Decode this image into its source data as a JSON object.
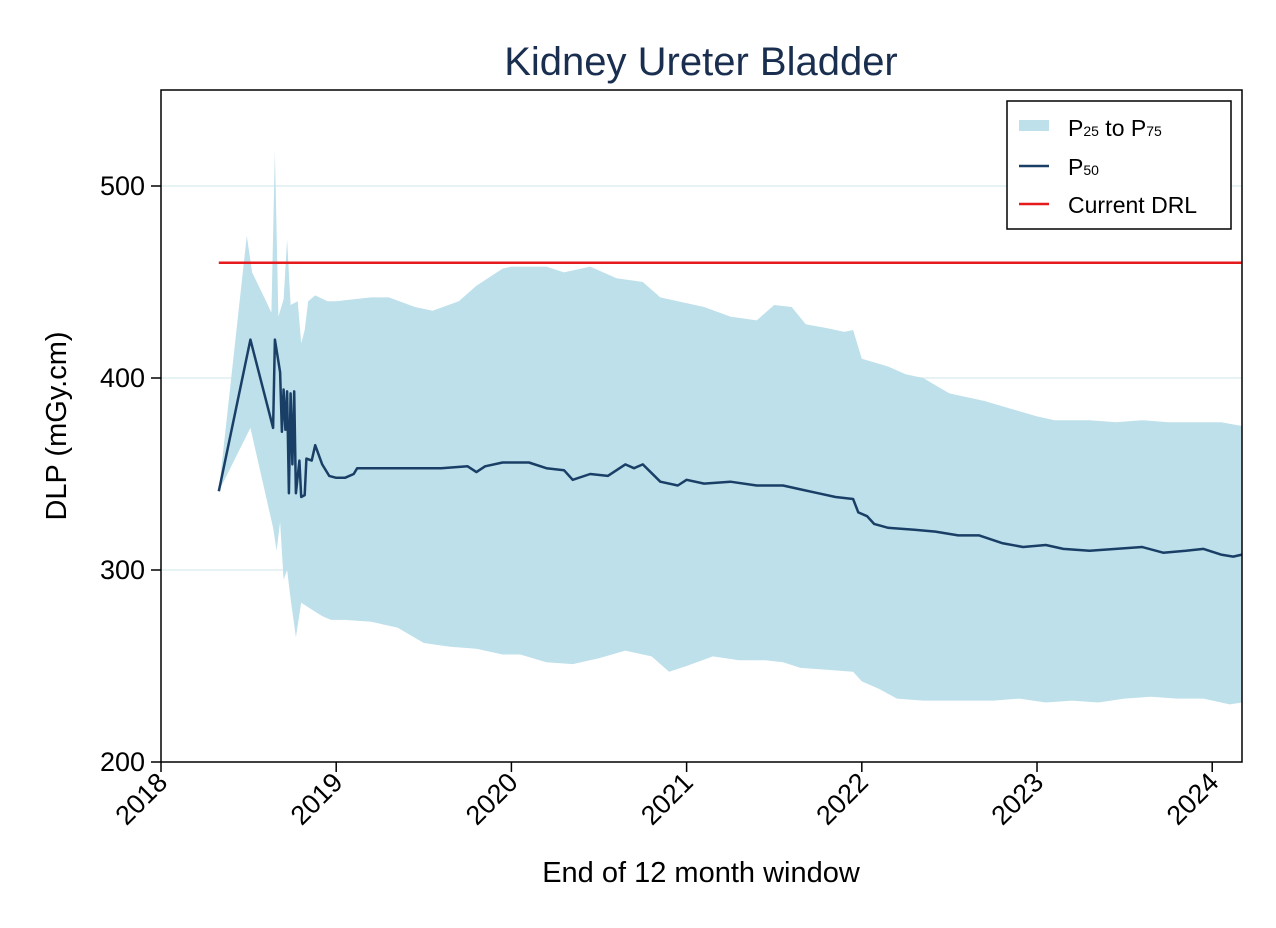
{
  "chart_data": {
    "type": "area",
    "title": "Kidney Ureter Bladder",
    "xlabel": "End of 12 month window",
    "ylabel": "DLP (mGy.cm)",
    "xlim": [
      2018.0,
      2024.17
    ],
    "ylim": [
      200,
      550
    ],
    "x_ticks": [
      2018,
      2019,
      2020,
      2021,
      2022,
      2023,
      2024
    ],
    "x_tick_labels": [
      "2018",
      "2019",
      "2020",
      "2021",
      "2022",
      "2023",
      "2024"
    ],
    "y_ticks": [
      200,
      300,
      400,
      500
    ],
    "y_tick_labels": [
      "200",
      "300",
      "400",
      "500"
    ],
    "grid": "horizontal",
    "legend": {
      "placement": "top-right",
      "entries": [
        {
          "key": "band",
          "label_parts": [
            "P",
            "25",
            " to P",
            "75"
          ]
        },
        {
          "key": "median",
          "label_parts": [
            "P",
            "50"
          ]
        },
        {
          "key": "drl",
          "label_parts": [
            "Current DRL"
          ]
        }
      ]
    },
    "colors": {
      "band": "#bde0ea",
      "median": "#1a3f66",
      "drl": "#e41a1c",
      "grid": "#e6f2f4",
      "title": "#1a2f4f"
    },
    "series": [
      {
        "name": "P50",
        "role": "median",
        "points": [
          [
            2018.33,
            341
          ],
          [
            2018.51,
            420
          ],
          [
            2018.64,
            374
          ],
          [
            2018.65,
            420
          ],
          [
            2018.68,
            403
          ],
          [
            2018.69,
            372
          ],
          [
            2018.7,
            394
          ],
          [
            2018.71,
            373
          ],
          [
            2018.72,
            393
          ],
          [
            2018.73,
            340
          ],
          [
            2018.74,
            392
          ],
          [
            2018.75,
            355
          ],
          [
            2018.76,
            393
          ],
          [
            2018.77,
            340
          ],
          [
            2018.79,
            357
          ],
          [
            2018.8,
            338
          ],
          [
            2018.82,
            339
          ],
          [
            2018.83,
            358
          ],
          [
            2018.86,
            357
          ],
          [
            2018.88,
            365
          ],
          [
            2018.92,
            355
          ],
          [
            2018.96,
            349
          ],
          [
            2019.0,
            348
          ],
          [
            2019.05,
            348
          ],
          [
            2019.1,
            350
          ],
          [
            2019.12,
            353
          ],
          [
            2019.25,
            353
          ],
          [
            2019.4,
            353
          ],
          [
            2019.6,
            353
          ],
          [
            2019.75,
            354
          ],
          [
            2019.8,
            351
          ],
          [
            2019.85,
            354
          ],
          [
            2019.95,
            356
          ],
          [
            2020.1,
            356
          ],
          [
            2020.2,
            353
          ],
          [
            2020.3,
            352
          ],
          [
            2020.35,
            347
          ],
          [
            2020.45,
            350
          ],
          [
            2020.55,
            349
          ],
          [
            2020.65,
            355
          ],
          [
            2020.7,
            353
          ],
          [
            2020.75,
            355
          ],
          [
            2020.85,
            346
          ],
          [
            2020.95,
            344
          ],
          [
            2021.0,
            347
          ],
          [
            2021.1,
            345
          ],
          [
            2021.25,
            346
          ],
          [
            2021.4,
            344
          ],
          [
            2021.55,
            344
          ],
          [
            2021.65,
            342
          ],
          [
            2021.75,
            340
          ],
          [
            2021.85,
            338
          ],
          [
            2021.95,
            337
          ],
          [
            2021.98,
            330
          ],
          [
            2022.03,
            328
          ],
          [
            2022.07,
            324
          ],
          [
            2022.15,
            322
          ],
          [
            2022.3,
            321
          ],
          [
            2022.42,
            320
          ],
          [
            2022.55,
            318
          ],
          [
            2022.67,
            318
          ],
          [
            2022.8,
            314
          ],
          [
            2022.92,
            312
          ],
          [
            2023.05,
            313
          ],
          [
            2023.15,
            311
          ],
          [
            2023.3,
            310
          ],
          [
            2023.45,
            311
          ],
          [
            2023.6,
            312
          ],
          [
            2023.72,
            309
          ],
          [
            2023.85,
            310
          ],
          [
            2023.95,
            311
          ],
          [
            2024.05,
            308
          ],
          [
            2024.12,
            307
          ],
          [
            2024.17,
            308
          ]
        ]
      },
      {
        "name": "P75",
        "role": "band-upper",
        "points": [
          [
            2018.33,
            341
          ],
          [
            2018.49,
            474
          ],
          [
            2018.52,
            455
          ],
          [
            2018.6,
            440
          ],
          [
            2018.63,
            434
          ],
          [
            2018.65,
            518
          ],
          [
            2018.67,
            432
          ],
          [
            2018.7,
            441
          ],
          [
            2018.72,
            472
          ],
          [
            2018.74,
            438
          ],
          [
            2018.78,
            440
          ],
          [
            2018.8,
            418
          ],
          [
            2018.82,
            425
          ],
          [
            2018.84,
            440
          ],
          [
            2018.88,
            443
          ],
          [
            2018.95,
            440
          ],
          [
            2019.0,
            440
          ],
          [
            2019.1,
            441
          ],
          [
            2019.2,
            442
          ],
          [
            2019.3,
            442
          ],
          [
            2019.45,
            437
          ],
          [
            2019.55,
            435
          ],
          [
            2019.7,
            440
          ],
          [
            2019.8,
            448
          ],
          [
            2019.95,
            457
          ],
          [
            2020.0,
            458
          ],
          [
            2020.2,
            458
          ],
          [
            2020.3,
            455
          ],
          [
            2020.45,
            458
          ],
          [
            2020.6,
            452
          ],
          [
            2020.75,
            450
          ],
          [
            2020.85,
            442
          ],
          [
            2020.95,
            440
          ],
          [
            2021.1,
            437
          ],
          [
            2021.25,
            432
          ],
          [
            2021.4,
            430
          ],
          [
            2021.5,
            438
          ],
          [
            2021.6,
            437
          ],
          [
            2021.68,
            428
          ],
          [
            2021.8,
            426
          ],
          [
            2021.9,
            424
          ],
          [
            2021.95,
            425
          ],
          [
            2022.0,
            410
          ],
          [
            2022.15,
            406
          ],
          [
            2022.25,
            402
          ],
          [
            2022.35,
            400
          ],
          [
            2022.5,
            392
          ],
          [
            2022.7,
            388
          ],
          [
            2022.85,
            384
          ],
          [
            2023.0,
            380
          ],
          [
            2023.1,
            378
          ],
          [
            2023.3,
            378
          ],
          [
            2023.45,
            377
          ],
          [
            2023.6,
            378
          ],
          [
            2023.75,
            377
          ],
          [
            2023.9,
            377
          ],
          [
            2024.05,
            377
          ],
          [
            2024.17,
            375
          ]
        ]
      },
      {
        "name": "P25",
        "role": "band-lower",
        "points": [
          [
            2018.33,
            341
          ],
          [
            2018.51,
            374
          ],
          [
            2018.64,
            322
          ],
          [
            2018.66,
            310
          ],
          [
            2018.68,
            325
          ],
          [
            2018.7,
            295
          ],
          [
            2018.72,
            300
          ],
          [
            2018.74,
            285
          ],
          [
            2018.77,
            265
          ],
          [
            2018.8,
            283
          ],
          [
            2018.85,
            280
          ],
          [
            2018.92,
            276
          ],
          [
            2018.97,
            274
          ],
          [
            2019.05,
            274
          ],
          [
            2019.2,
            273
          ],
          [
            2019.35,
            270
          ],
          [
            2019.5,
            262
          ],
          [
            2019.65,
            260
          ],
          [
            2019.8,
            259
          ],
          [
            2019.95,
            256
          ],
          [
            2020.05,
            256
          ],
          [
            2020.2,
            252
          ],
          [
            2020.35,
            251
          ],
          [
            2020.5,
            254
          ],
          [
            2020.65,
            258
          ],
          [
            2020.8,
            255
          ],
          [
            2020.9,
            247
          ],
          [
            2021.0,
            250
          ],
          [
            2021.15,
            255
          ],
          [
            2021.3,
            253
          ],
          [
            2021.45,
            253
          ],
          [
            2021.55,
            252
          ],
          [
            2021.65,
            249
          ],
          [
            2021.8,
            248
          ],
          [
            2021.95,
            247
          ],
          [
            2022.0,
            242
          ],
          [
            2022.1,
            238
          ],
          [
            2022.2,
            233
          ],
          [
            2022.35,
            232
          ],
          [
            2022.55,
            232
          ],
          [
            2022.75,
            232
          ],
          [
            2022.9,
            233
          ],
          [
            2023.05,
            231
          ],
          [
            2023.2,
            232
          ],
          [
            2023.35,
            231
          ],
          [
            2023.5,
            233
          ],
          [
            2023.65,
            234
          ],
          [
            2023.8,
            233
          ],
          [
            2023.95,
            233
          ],
          [
            2024.1,
            230
          ],
          [
            2024.17,
            231
          ]
        ]
      },
      {
        "name": "Current DRL",
        "role": "drl",
        "points": [
          [
            2018.33,
            460
          ],
          [
            2024.17,
            460
          ]
        ]
      }
    ]
  }
}
